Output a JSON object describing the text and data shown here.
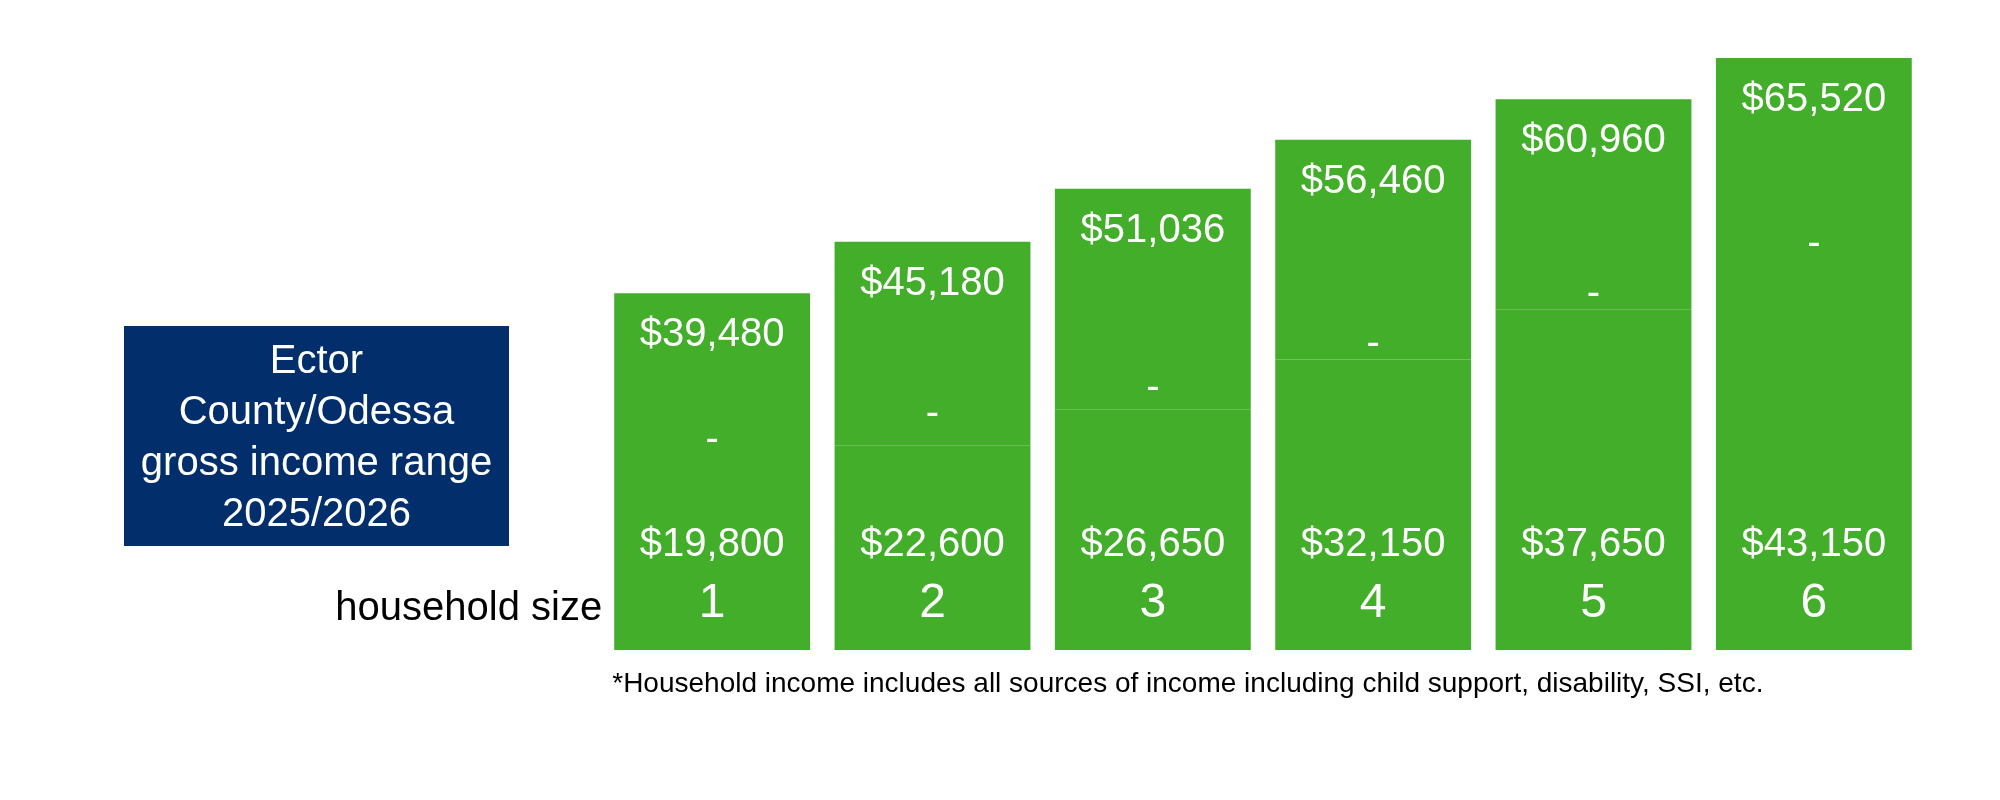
{
  "chart_data": {
    "type": "bar",
    "stacked": true,
    "title": "Ector County/Odessa gross income range 2025/2026",
    "xlabel": "household size",
    "categories": [
      "1",
      "2",
      "3",
      "4",
      "5",
      "6"
    ],
    "tick_labels": "x",
    "series": [
      {
        "color": "#43ae2a",
        "values": [
          19800,
          22600,
          26650,
          32150,
          37650,
          43150
        ],
        "value_labels": [
          "$19,800",
          "$22,600",
          "$26,650",
          "$32,150",
          "$37,650",
          "$43,150"
        ]
      },
      {
        "color": "#43ae2a",
        "values": [
          19680,
          22580,
          24386,
          24310,
          23310,
          22370
        ],
        "value_labels": [
          "-",
          "-",
          "-",
          "-",
          "-",
          "-"
        ]
      }
    ],
    "totals": [
      "$39,480",
      "$45,180",
      "$51,036",
      "$56,460",
      "$60,960",
      "$65,520"
    ],
    "annotations": [
      "*Household income includes all sources of income including child support, disability, SSI, etc."
    ]
  }
}
